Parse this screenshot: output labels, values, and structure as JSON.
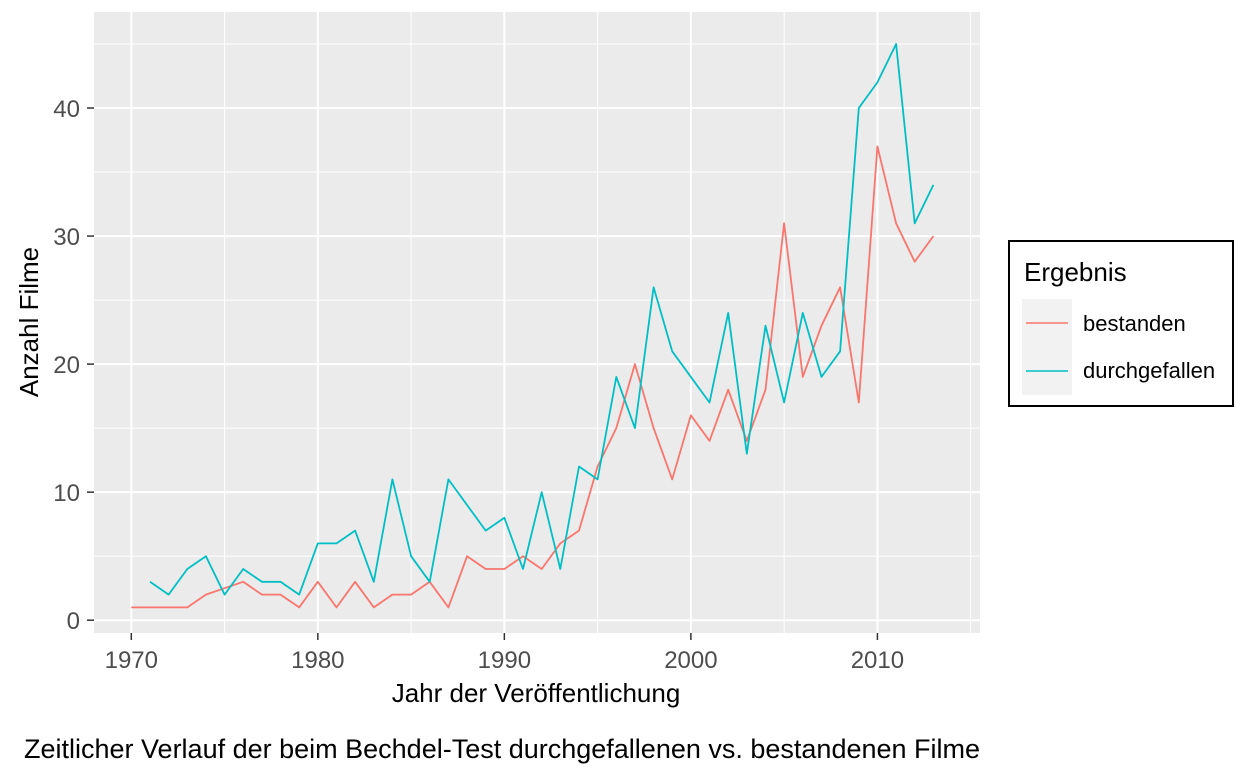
{
  "chart_data": {
    "type": "line",
    "title": "",
    "caption": "Zeitlicher Verlauf der beim Bechdel-Test durchgefallenen vs. bestandenen Filme",
    "xlabel": "Jahr der Veröffentlichung",
    "ylabel": "Anzahl Filme",
    "xlim": [
      1968,
      2015.5
    ],
    "ylim": [
      -1,
      47.5
    ],
    "x_ticks": [
      1970,
      1980,
      1990,
      2000,
      2010
    ],
    "y_ticks": [
      0,
      10,
      20,
      30,
      40
    ],
    "grid": true,
    "legend": {
      "title": "Ergebnis",
      "placement": "right"
    },
    "series": [
      {
        "name": "bestanden",
        "color": "#F8766D",
        "x": [
          1970,
          1971,
          1972,
          1973,
          1974,
          1975,
          1976,
          1977,
          1978,
          1979,
          1980,
          1981,
          1982,
          1983,
          1984,
          1985,
          1986,
          1987,
          1988,
          1989,
          1990,
          1991,
          1992,
          1993,
          1994,
          1995,
          1996,
          1997,
          1998,
          1999,
          2000,
          2001,
          2002,
          2003,
          2004,
          2005,
          2006,
          2007,
          2008,
          2009,
          2010,
          2011,
          2012,
          2013
        ],
        "y": [
          1,
          1,
          1,
          1,
          2,
          2.5,
          3,
          2,
          2,
          1,
          3,
          1,
          3,
          1,
          2,
          2,
          3,
          1,
          5,
          4,
          4,
          5,
          4,
          6,
          7,
          12,
          15,
          20,
          15,
          11,
          16,
          14,
          18,
          14,
          18,
          31,
          19,
          23,
          26,
          17,
          37,
          31,
          28,
          30
        ]
      },
      {
        "name": "durchgefallen",
        "color": "#00BFC4",
        "x": [
          1971,
          1972,
          1973,
          1974,
          1975,
          1976,
          1977,
          1978,
          1979,
          1980,
          1981,
          1982,
          1983,
          1984,
          1985,
          1986,
          1987,
          1989,
          1990,
          1991,
          1992,
          1993,
          1994,
          1995,
          1996,
          1997,
          1998,
          1999,
          2001,
          2002,
          2003,
          2004,
          2005,
          2006,
          2007,
          2008,
          2009,
          2010,
          2011,
          2012,
          2013
        ],
        "y": [
          3,
          2,
          4,
          5,
          2,
          4,
          3,
          3,
          2,
          6,
          6,
          7,
          3,
          11,
          5,
          3,
          11,
          7,
          8,
          4,
          10,
          4,
          12,
          11,
          19,
          15,
          26,
          21,
          17,
          24,
          13,
          23,
          17,
          24,
          19,
          21,
          40,
          42,
          45,
          31,
          34
        ]
      }
    ]
  }
}
